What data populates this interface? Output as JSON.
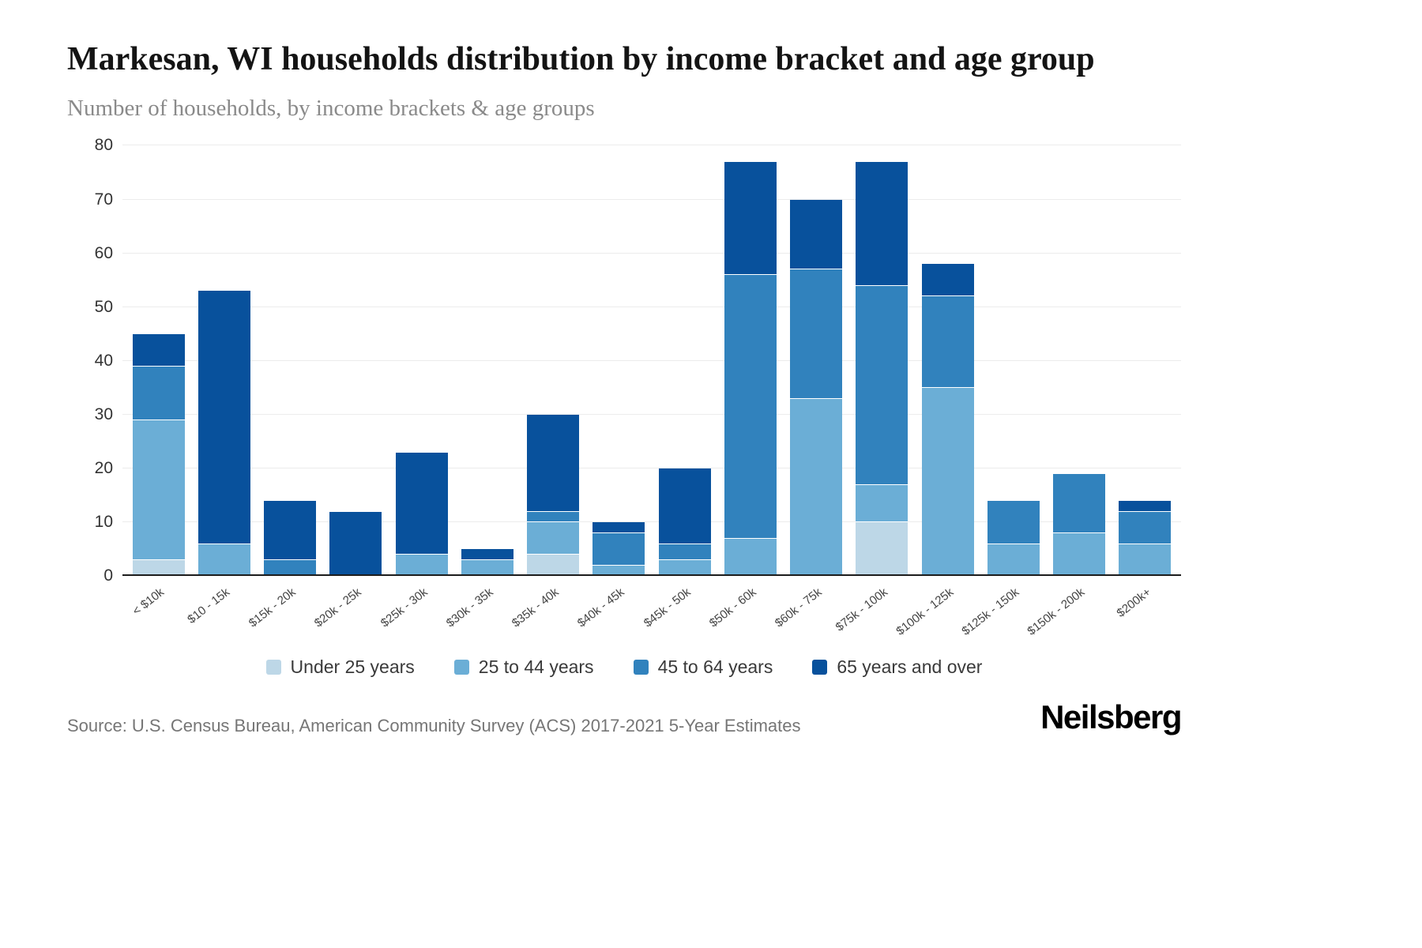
{
  "header": {
    "title": "Markesan, WI households distribution by income bracket and age group",
    "subtitle": "Number of households, by income brackets & age groups"
  },
  "footer": {
    "source": "Source: U.S. Census Bureau, American Community Survey (ACS) 2017-2021 5-Year Estimates",
    "logo": "Neilsberg"
  },
  "chart_data": {
    "type": "bar",
    "stacked": true,
    "title": "Markesan, WI households distribution by income bracket and age group",
    "subtitle": "Number of households, by income brackets & age groups",
    "xlabel": "",
    "ylabel": "Number of households",
    "ylim": [
      0,
      80
    ],
    "yticks": [
      0,
      10,
      20,
      30,
      40,
      50,
      60,
      70,
      80
    ],
    "grid": true,
    "legend_position": "bottom",
    "categories": [
      "< $10k",
      "$10 - 15k",
      "$15k - 20k",
      "$20k - 25k",
      "$25k - 30k",
      "$30k - 35k",
      "$35k - 40k",
      "$40k - 45k",
      "$45k - 50k",
      "$50k - 60k",
      "$60k - 75k",
      "$75k - 100k",
      "$100k - 125k",
      "$125k - 150k",
      "$150k - 200k",
      "$200k+"
    ],
    "series": [
      {
        "name": "Under 25 years",
        "color": "#bdd7e7",
        "values": [
          3,
          0,
          0,
          0,
          0,
          0,
          4,
          0,
          0,
          0,
          0,
          10,
          0,
          0,
          0,
          0
        ]
      },
      {
        "name": "25 to 44 years",
        "color": "#6baed6",
        "values": [
          26,
          6,
          0,
          0,
          4,
          3,
          6,
          2,
          3,
          7,
          33,
          7,
          35,
          6,
          8,
          6
        ]
      },
      {
        "name": "45 to 64 years",
        "color": "#3182bd",
        "values": [
          10,
          0,
          3,
          0,
          0,
          0,
          2,
          6,
          3,
          49,
          24,
          37,
          17,
          8,
          11,
          6
        ]
      },
      {
        "name": "65 years and over",
        "color": "#08519c",
        "values": [
          6,
          47,
          11,
          12,
          19,
          2,
          18,
          2,
          14,
          21,
          13,
          23,
          6,
          0,
          0,
          2
        ]
      }
    ],
    "totals": [
      45,
      53,
      14,
      12,
      23,
      5,
      30,
      10,
      20,
      77,
      70,
      77,
      58,
      14,
      19,
      14
    ]
  }
}
